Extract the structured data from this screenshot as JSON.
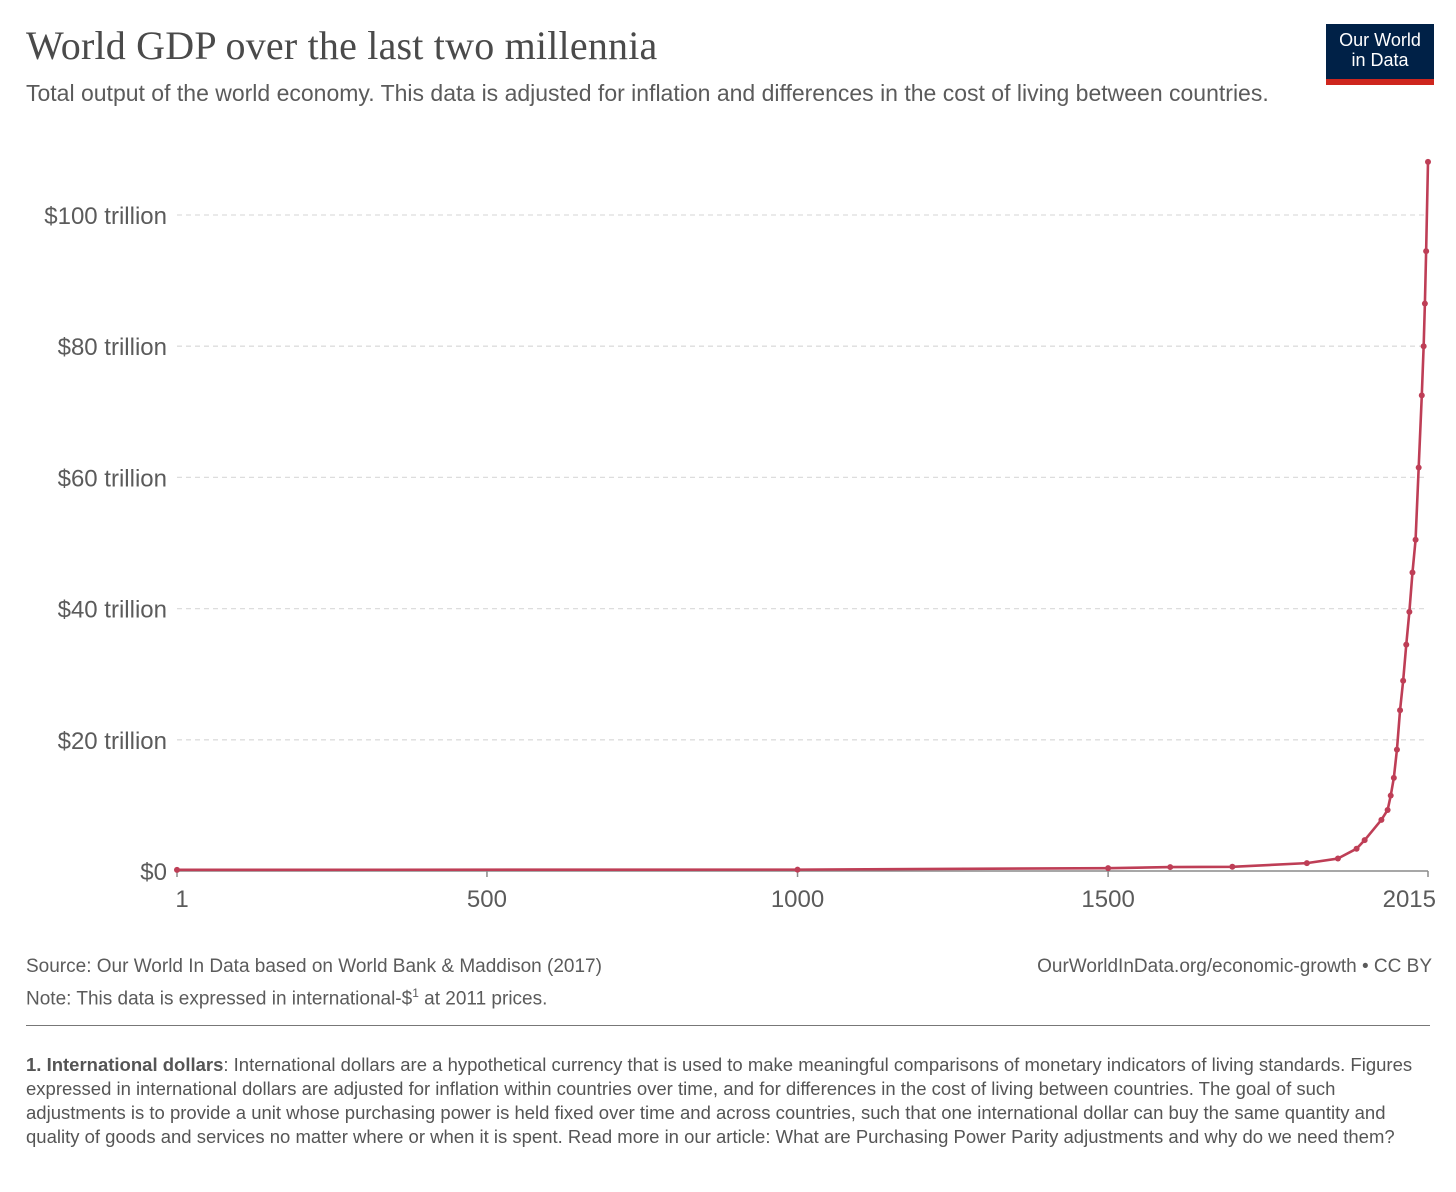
{
  "header": {
    "title": "World GDP over the last two millennia",
    "subtitle": "Total output of the world economy. This data is adjusted for inflation and differences in the cost of living between countries.",
    "logo_line1": "Our World",
    "logo_line2": "in Data"
  },
  "footer": {
    "source": "Source: Our World In Data based on World Bank & Maddison (2017)",
    "note_prefix": "Note: This data is expressed in international-$",
    "note_sup": "1",
    "note_suffix": " at 2011 prices.",
    "url": "OurWorldInData.org/economic-growth • CC BY",
    "footnote_term": "1. International dollars",
    "footnote_text": ": International dollars are a hypothetical currency that is used to make meaningful comparisons of monetary indicators of living standards. Figures expressed in international dollars are adjusted for inflation within countries over time, and for differences in the cost of living between countries. The goal of such adjustments is to provide a unit whose purchasing power is held fixed over time and across countries, such that one international dollar can buy the same quantity and quality of goods and services no matter where or when it is spent. Read more in our article: What are Purchasing Power Parity adjustments and why do we need them?"
  },
  "colors": {
    "line": "#be3e56",
    "grid": "#dddddd",
    "logo_bg": "#002147",
    "logo_accent": "#ce261e"
  },
  "chart_data": {
    "type": "line",
    "xlim": [
      1,
      2015
    ],
    "ylim": [
      0,
      100
    ],
    "x_ticks": [
      1,
      500,
      1000,
      1500,
      2015
    ],
    "y_ticks": [
      {
        "value": 0,
        "label": "$0"
      },
      {
        "value": 20,
        "label": "$20 trillion"
      },
      {
        "value": 40,
        "label": "$40 trillion"
      },
      {
        "value": 60,
        "label": "$60 trillion"
      },
      {
        "value": 80,
        "label": "$80 trillion"
      },
      {
        "value": 100,
        "label": "$100 trillion"
      }
    ],
    "grid": "horizontal-dashed",
    "series": [
      {
        "x": [
          1,
          1000,
          1500,
          1600,
          1700,
          1820,
          1870,
          1900,
          1913,
          1940,
          1950,
          1955,
          1960,
          1965,
          1970,
          1975,
          1980,
          1985,
          1990,
          1995,
          2000,
          2005,
          2008,
          2010,
          2012,
          2015
        ],
        "y": [
          0.18,
          0.21,
          0.43,
          0.6,
          0.64,
          1.2,
          1.9,
          3.4,
          4.7,
          7.8,
          9.3,
          11.5,
          14.2,
          18.5,
          24.5,
          29.0,
          34.5,
          39.5,
          45.5,
          50.5,
          61.5,
          72.5,
          80.0,
          86.5,
          94.5,
          108.1
        ]
      }
    ]
  }
}
